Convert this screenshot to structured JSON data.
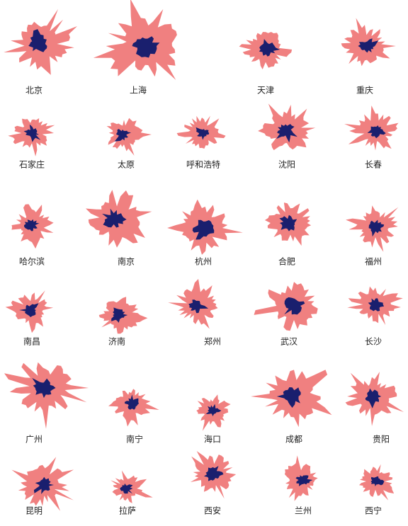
{
  "rows": [
    [
      "北京",
      "上海",
      "天津",
      "重庆"
    ],
    [
      "石家庄",
      "太原",
      "呼和浩特",
      "沈阳",
      "长春"
    ],
    [
      "哈尔滨",
      "南京",
      "杭州",
      "合肥",
      "福州"
    ],
    [
      "南昌",
      "济南",
      "郑州",
      "武汉",
      "长沙"
    ],
    [
      "广州",
      "南宁",
      "海口",
      "成都",
      "贵阳"
    ],
    [
      "昆明",
      "拉萨",
      "西安",
      "兰州",
      "西宁"
    ]
  ]
}
